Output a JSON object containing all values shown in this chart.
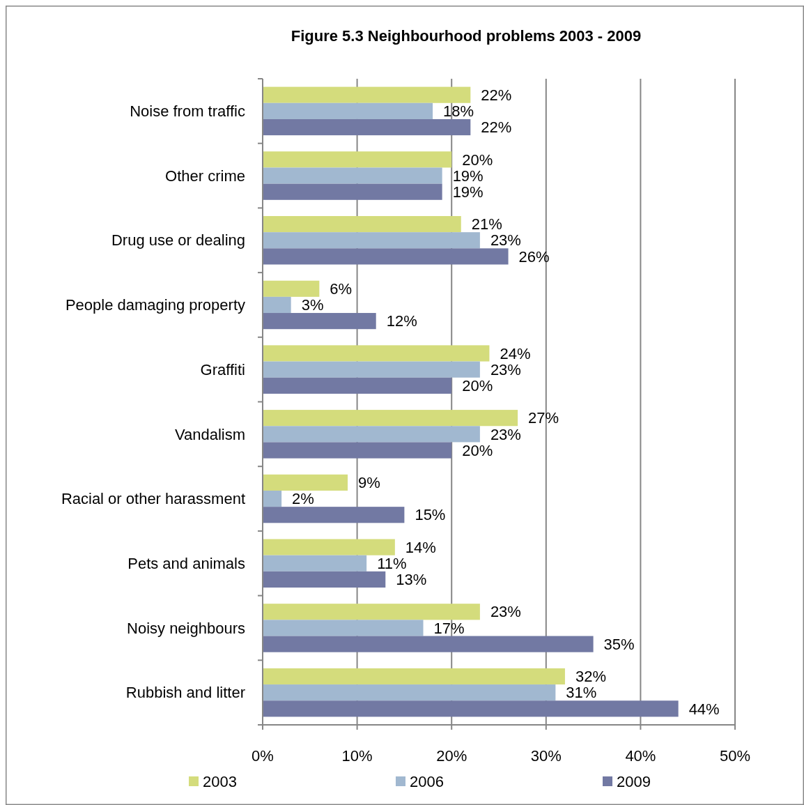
{
  "chart_data": {
    "type": "bar",
    "orientation": "horizontal",
    "title": "Figure 5.3 Neighbourhood problems 2003 - 2009",
    "categories": [
      "Noise from traffic",
      "Other crime",
      "Drug use or dealing",
      "People damaging property",
      "Graffiti",
      "Vandalism",
      "Racial or other harassment",
      "Pets and animals",
      "Noisy neighbours",
      "Rubbish and litter"
    ],
    "series": [
      {
        "name": "2003",
        "color": "#d4dc7c",
        "values": [
          22,
          20,
          21,
          6,
          24,
          27,
          9,
          14,
          23,
          32
        ],
        "value_labels": [
          "22%",
          "20%",
          "21%",
          "6%",
          "24%",
          "27%",
          "9%",
          "14%",
          "23%",
          "32%"
        ]
      },
      {
        "name": "2006",
        "color": "#a1b8d0",
        "values": [
          18,
          19,
          23,
          3,
          23,
          23,
          2,
          11,
          17,
          31
        ],
        "value_labels": [
          "18%",
          "19%",
          "23%",
          "3%",
          "23%",
          "23%",
          "2%",
          "11%",
          "17%",
          "31%"
        ]
      },
      {
        "name": "2009",
        "color": "#7279a3",
        "values": [
          22,
          19,
          26,
          12,
          20,
          20,
          15,
          13,
          35,
          44
        ],
        "value_labels": [
          "22%",
          "19%",
          "26%",
          "12%",
          "20%",
          "20%",
          "15%",
          "13%",
          "35%",
          "44%"
        ]
      }
    ],
    "xlim": [
      0,
      50
    ],
    "xticks": [
      {
        "value": 0,
        "label": "0%"
      },
      {
        "value": 10,
        "label": "10%"
      },
      {
        "value": 20,
        "label": "20%"
      },
      {
        "value": 30,
        "label": "30%"
      },
      {
        "value": 40,
        "label": "40%"
      },
      {
        "value": 50,
        "label": "50%"
      }
    ],
    "grid": "x",
    "legend": "bottom"
  }
}
